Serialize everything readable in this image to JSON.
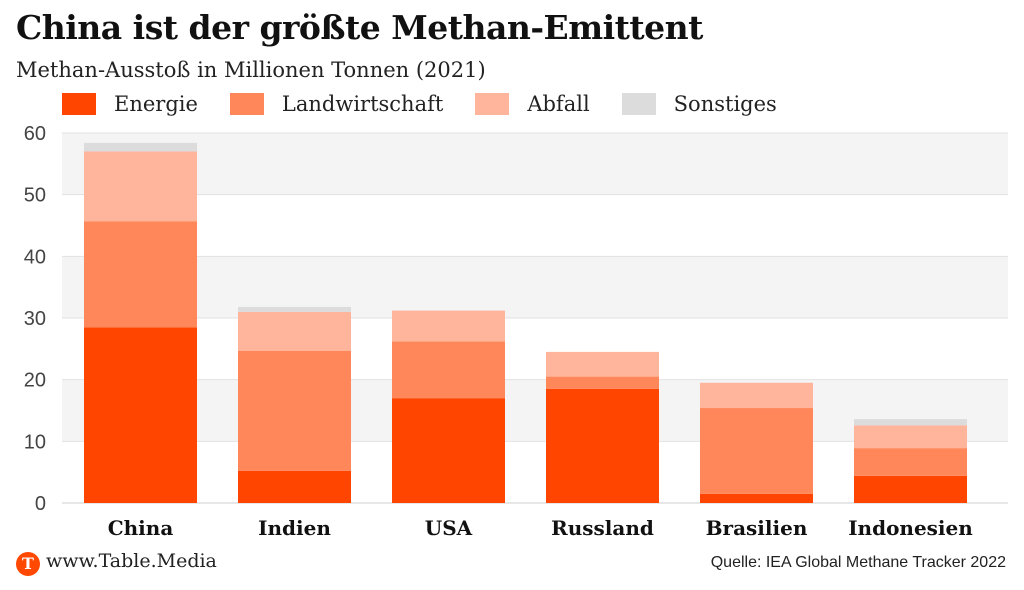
{
  "header": {
    "title": "China ist der größte Methan-Emittent",
    "subtitle": "Methan-Ausstoß in Millionen Tonnen (2021)"
  },
  "footer": {
    "logo_letter": "T",
    "site": "www.Table.Media",
    "source": "Quelle: IEA Global Methane Tracker 2022"
  },
  "colors": {
    "Energie": "#ff4500",
    "Landwirtschaft": "#ff8759",
    "Abfall": "#ffb59c",
    "Sonstiges": "#dcdcdc",
    "accent": "#ff4800"
  },
  "chart_data": {
    "type": "bar",
    "stacked": true,
    "title": "China ist der größte Methan-Emittent",
    "subtitle": "Methan-Ausstoß in Millionen Tonnen (2021)",
    "categories": [
      "China",
      "Indien",
      "USA",
      "Russland",
      "Brasilien",
      "Indonesien"
    ],
    "series": [
      {
        "name": "Energie",
        "values": [
          28.5,
          5.2,
          17.0,
          18.5,
          1.5,
          4.4
        ]
      },
      {
        "name": "Landwirtschaft",
        "values": [
          17.2,
          19.5,
          9.2,
          2.0,
          13.9,
          4.5
        ]
      },
      {
        "name": "Abfall",
        "values": [
          11.3,
          6.3,
          5.0,
          4.0,
          4.1,
          3.7
        ]
      },
      {
        "name": "Sonstiges",
        "values": [
          1.4,
          0.8,
          0.0,
          0.0,
          0.0,
          1.0
        ]
      }
    ],
    "yticks": [
      0,
      10,
      20,
      30,
      40,
      50,
      60
    ],
    "ylim": [
      0,
      60
    ],
    "grid": true,
    "legend_position": "top-left"
  }
}
